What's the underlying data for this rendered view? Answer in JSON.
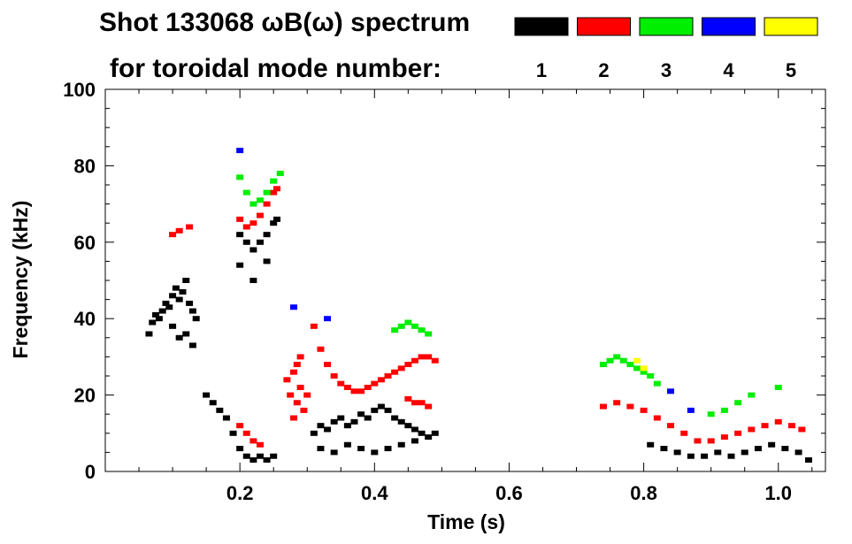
{
  "chart_data": {
    "type": "scatter",
    "title": "Shot 133068 ωB(ω) spectrum",
    "legend_title": "for toroidal mode number:",
    "legend_placement": "top-right",
    "xlabel": "Time (s)",
    "ylabel": "Frequency (kHz)",
    "xlim": [
      0.0,
      1.07
    ],
    "ylim": [
      0,
      100
    ],
    "x_ticks": [
      0.2,
      0.4,
      0.6,
      0.8,
      1.0
    ],
    "x_tick_labels": [
      "0.2",
      "0.4",
      "0.6",
      "0.8",
      "1.0"
    ],
    "y_ticks": [
      0,
      20,
      40,
      60,
      80,
      100
    ],
    "y_tick_labels": [
      "0",
      "20",
      "40",
      "60",
      "80",
      "100"
    ],
    "grid": false,
    "legend": [
      {
        "mode": "1",
        "color": "#000000"
      },
      {
        "mode": "2",
        "color": "#ff0000"
      },
      {
        "mode": "3",
        "color": "#00ee00"
      },
      {
        "mode": "4",
        "color": "#0000ff"
      },
      {
        "mode": "5",
        "color": "#ffff00"
      }
    ],
    "series": [
      {
        "name": "n=1",
        "color": "#000000",
        "points": [
          [
            0.065,
            36
          ],
          [
            0.07,
            39
          ],
          [
            0.075,
            41
          ],
          [
            0.08,
            40
          ],
          [
            0.085,
            42
          ],
          [
            0.09,
            44
          ],
          [
            0.095,
            43
          ],
          [
            0.1,
            46
          ],
          [
            0.105,
            48
          ],
          [
            0.11,
            45
          ],
          [
            0.115,
            47
          ],
          [
            0.12,
            50
          ],
          [
            0.125,
            44
          ],
          [
            0.13,
            42
          ],
          [
            0.135,
            40
          ],
          [
            0.1,
            38
          ],
          [
            0.11,
            35
          ],
          [
            0.12,
            36
          ],
          [
            0.13,
            33
          ],
          [
            0.15,
            20
          ],
          [
            0.16,
            18
          ],
          [
            0.17,
            16
          ],
          [
            0.18,
            14
          ],
          [
            0.19,
            10
          ],
          [
            0.2,
            6
          ],
          [
            0.21,
            4
          ],
          [
            0.22,
            3
          ],
          [
            0.23,
            4
          ],
          [
            0.24,
            3
          ],
          [
            0.25,
            4
          ],
          [
            0.2,
            62
          ],
          [
            0.21,
            60
          ],
          [
            0.22,
            58
          ],
          [
            0.23,
            60
          ],
          [
            0.24,
            62
          ],
          [
            0.25,
            65
          ],
          [
            0.255,
            66
          ],
          [
            0.2,
            54
          ],
          [
            0.22,
            50
          ],
          [
            0.24,
            55
          ],
          [
            0.31,
            10
          ],
          [
            0.32,
            12
          ],
          [
            0.33,
            11
          ],
          [
            0.34,
            13
          ],
          [
            0.35,
            14
          ],
          [
            0.36,
            12
          ],
          [
            0.37,
            13
          ],
          [
            0.38,
            15
          ],
          [
            0.39,
            14
          ],
          [
            0.4,
            16
          ],
          [
            0.41,
            17
          ],
          [
            0.42,
            16
          ],
          [
            0.43,
            14
          ],
          [
            0.44,
            13
          ],
          [
            0.45,
            12
          ],
          [
            0.46,
            11
          ],
          [
            0.47,
            10
          ],
          [
            0.48,
            9
          ],
          [
            0.49,
            10
          ],
          [
            0.32,
            6
          ],
          [
            0.34,
            5
          ],
          [
            0.36,
            7
          ],
          [
            0.38,
            6
          ],
          [
            0.4,
            5
          ],
          [
            0.42,
            6
          ],
          [
            0.44,
            7
          ],
          [
            0.46,
            8
          ],
          [
            0.81,
            7
          ],
          [
            0.83,
            6
          ],
          [
            0.85,
            5
          ],
          [
            0.87,
            4
          ],
          [
            0.89,
            4
          ],
          [
            0.91,
            5
          ],
          [
            0.93,
            4
          ],
          [
            0.95,
            5
          ],
          [
            0.97,
            6
          ],
          [
            0.99,
            7
          ],
          [
            1.01,
            6
          ],
          [
            1.03,
            5
          ],
          [
            1.045,
            3
          ]
        ]
      },
      {
        "name": "n=2",
        "color": "#ff0000",
        "points": [
          [
            0.1,
            62
          ],
          [
            0.11,
            63
          ],
          [
            0.125,
            64
          ],
          [
            0.2,
            66
          ],
          [
            0.21,
            64
          ],
          [
            0.22,
            65
          ],
          [
            0.23,
            67
          ],
          [
            0.24,
            70
          ],
          [
            0.25,
            73
          ],
          [
            0.255,
            74
          ],
          [
            0.2,
            12
          ],
          [
            0.21,
            10
          ],
          [
            0.22,
            8
          ],
          [
            0.23,
            7
          ],
          [
            0.27,
            24
          ],
          [
            0.275,
            20
          ],
          [
            0.28,
            26
          ],
          [
            0.285,
            18
          ],
          [
            0.29,
            22
          ],
          [
            0.295,
            16
          ],
          [
            0.3,
            20
          ],
          [
            0.285,
            28
          ],
          [
            0.28,
            14
          ],
          [
            0.29,
            30
          ],
          [
            0.31,
            38
          ],
          [
            0.32,
            32
          ],
          [
            0.33,
            28
          ],
          [
            0.34,
            25
          ],
          [
            0.35,
            23
          ],
          [
            0.36,
            22
          ],
          [
            0.37,
            21
          ],
          [
            0.38,
            21
          ],
          [
            0.39,
            22
          ],
          [
            0.4,
            23
          ],
          [
            0.41,
            24
          ],
          [
            0.42,
            25
          ],
          [
            0.43,
            26
          ],
          [
            0.44,
            27
          ],
          [
            0.45,
            28
          ],
          [
            0.46,
            29
          ],
          [
            0.47,
            30
          ],
          [
            0.48,
            30
          ],
          [
            0.49,
            29
          ],
          [
            0.45,
            19
          ],
          [
            0.46,
            18
          ],
          [
            0.47,
            18
          ],
          [
            0.48,
            17
          ],
          [
            0.74,
            17
          ],
          [
            0.76,
            18
          ],
          [
            0.78,
            17
          ],
          [
            0.8,
            16
          ],
          [
            0.82,
            14
          ],
          [
            0.84,
            12
          ],
          [
            0.86,
            10
          ],
          [
            0.88,
            8
          ],
          [
            0.9,
            8
          ],
          [
            0.92,
            9
          ],
          [
            0.94,
            10
          ],
          [
            0.96,
            11
          ],
          [
            0.98,
            12
          ],
          [
            1.0,
            13
          ],
          [
            1.02,
            12
          ],
          [
            1.035,
            11
          ]
        ]
      },
      {
        "name": "n=3",
        "color": "#00ee00",
        "points": [
          [
            0.2,
            77
          ],
          [
            0.21,
            73
          ],
          [
            0.22,
            70
          ],
          [
            0.23,
            71
          ],
          [
            0.24,
            73
          ],
          [
            0.25,
            76
          ],
          [
            0.26,
            78
          ],
          [
            0.43,
            37
          ],
          [
            0.44,
            38
          ],
          [
            0.45,
            39
          ],
          [
            0.46,
            38
          ],
          [
            0.47,
            37
          ],
          [
            0.48,
            36
          ],
          [
            0.74,
            28
          ],
          [
            0.75,
            29
          ],
          [
            0.76,
            30
          ],
          [
            0.77,
            29
          ],
          [
            0.78,
            28
          ],
          [
            0.79,
            27
          ],
          [
            0.8,
            26
          ],
          [
            0.81,
            25
          ],
          [
            0.82,
            23
          ],
          [
            0.9,
            15
          ],
          [
            0.92,
            16
          ],
          [
            0.94,
            18
          ],
          [
            0.96,
            20
          ],
          [
            1.0,
            22
          ]
        ]
      },
      {
        "name": "n=4",
        "color": "#0000ff",
        "points": [
          [
            0.2,
            84
          ],
          [
            0.28,
            43
          ],
          [
            0.33,
            40
          ],
          [
            0.84,
            21
          ],
          [
            0.87,
            16
          ]
        ]
      },
      {
        "name": "n=5",
        "color": "#ffff00",
        "points": [
          [
            0.79,
            29
          ],
          [
            0.8,
            27
          ]
        ]
      }
    ]
  }
}
